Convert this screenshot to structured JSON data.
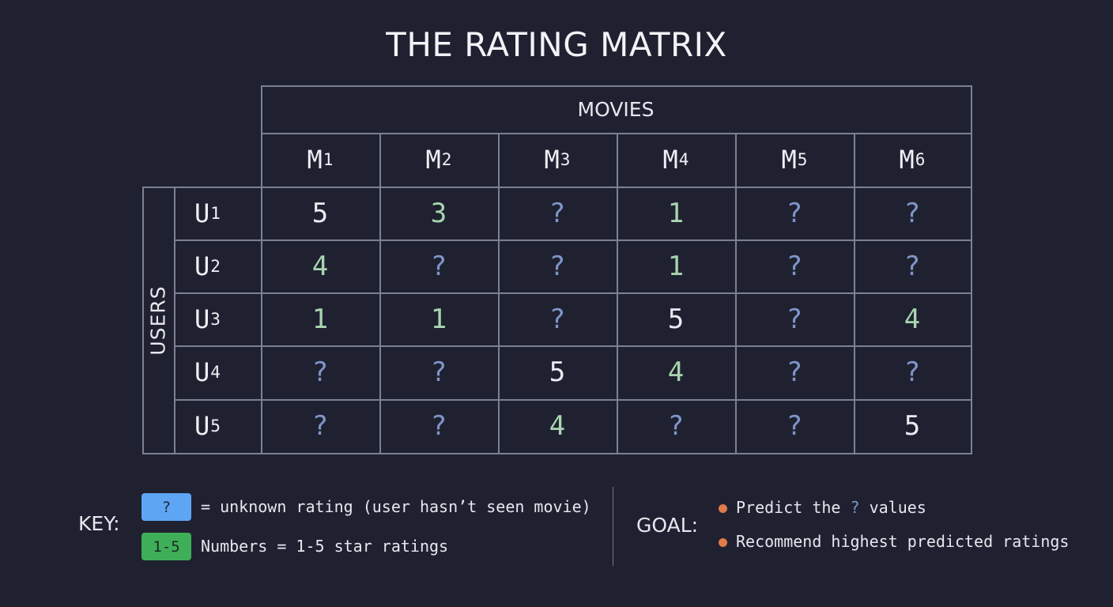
{
  "title": "THE RATING MATRIX",
  "movies_label": "MOVIES",
  "users_label": "USERS",
  "movies": [
    {
      "base": "M",
      "sub": "1"
    },
    {
      "base": "M",
      "sub": "2"
    },
    {
      "base": "M",
      "sub": "3"
    },
    {
      "base": "M",
      "sub": "4"
    },
    {
      "base": "M",
      "sub": "5"
    },
    {
      "base": "M",
      "sub": "6"
    }
  ],
  "users": [
    {
      "base": "U",
      "sub": "1"
    },
    {
      "base": "U",
      "sub": "2"
    },
    {
      "base": "U",
      "sub": "3"
    },
    {
      "base": "U",
      "sub": "4"
    },
    {
      "base": "U",
      "sub": "5"
    }
  ],
  "ratings": [
    [
      "5",
      "3",
      "?",
      "1",
      "?",
      "?"
    ],
    [
      "4",
      "?",
      "?",
      "1",
      "?",
      "?"
    ],
    [
      "1",
      "1",
      "?",
      "5",
      "?",
      "4"
    ],
    [
      "?",
      "?",
      "5",
      "4",
      "?",
      "?"
    ],
    [
      "?",
      "?",
      "4",
      "?",
      "?",
      "5"
    ]
  ],
  "key": {
    "label": "KEY:",
    "unknown_swatch": "?",
    "unknown_text": "= unknown rating (user hasn’t seen movie)",
    "known_swatch": "1-5",
    "known_text": "Numbers = 1-5 star ratings"
  },
  "goal": {
    "label": "GOAL:",
    "item1_before": "Predict the",
    "item1_q": "?",
    "item1_after": "values",
    "item2": "Recommend highest predicted ratings"
  },
  "colors": {
    "background": "#1f2130",
    "unknown": "#7f95c9",
    "known_green": "#a8d5b0",
    "key_unknown": "#5ea5f4",
    "key_known": "#3fae58",
    "bullet": "#e07a4a"
  }
}
